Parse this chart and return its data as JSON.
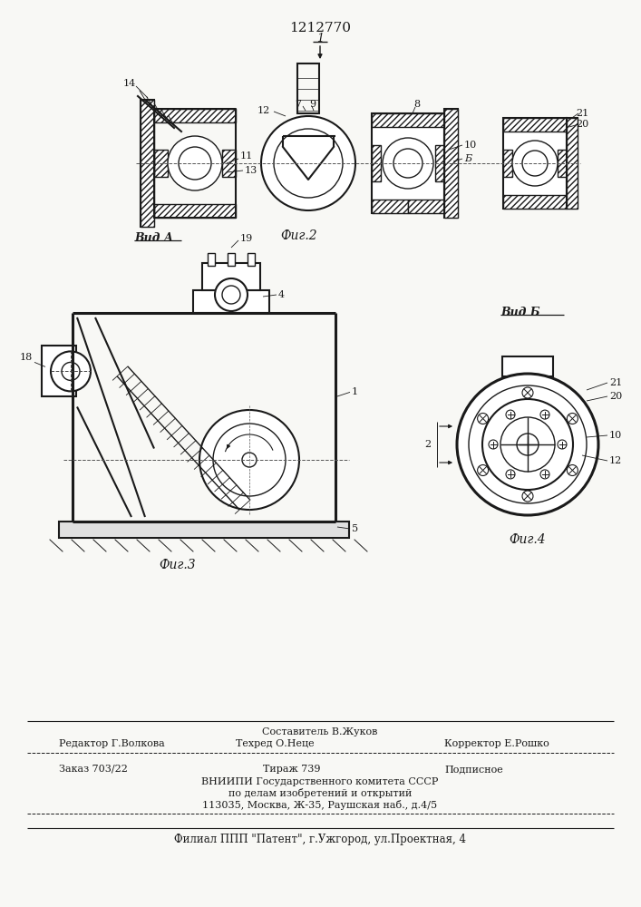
{
  "patent_number": "1212770",
  "bg": "#f8f8f5",
  "lc": "#1a1a1a",
  "fig2_caption": "Фиг.2",
  "fig3_caption": "Фиг.3",
  "fig4_caption": "Фиг.4",
  "vid_a_label": "Вид А",
  "vid_b_label": "Вид Б",
  "footer_editor": "Редактор Г.Волкова",
  "footer_compiler": "Составитель В.Жуков",
  "footer_tech": "Техред О.Неце",
  "footer_corrector": "Корректор Е.Рошко",
  "footer_order": "Заказ 703/22",
  "footer_tirazh": "Тираж 739",
  "footer_podp": "Подписное",
  "footer_vniip": "ВНИИПИ Государственного комитета СССР\nпо делам изобретений и открытий\n113035, Москва, Ж-35, Раушская наб., д.4/5",
  "footer_filial": "Филиал ППП \"Патент\", г.Ужгород, ул.Проектная, 4"
}
